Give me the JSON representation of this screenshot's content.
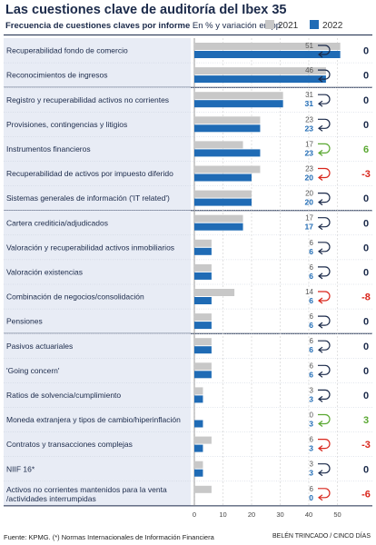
{
  "title": "Las cuestiones clave de auditoría del Ibex 35",
  "subtitle_bold": "Frecuencia de cuestiones claves por informe",
  "subtitle_rest": "En % y variación en pp",
  "footer": "Fuente: KPMG. (*) Normas Internacionales de Información Financiera",
  "credit": "BELÉN TRINCADO / CINCO DÍAS",
  "colors": {
    "y2021": "#c8c8c8",
    "y2022": "#1f6bb5",
    "positive": "#5aa832",
    "negative": "#d9261c",
    "neutral": "#1b2a4a",
    "band": "#e8ecf5"
  },
  "chart_data": {
    "type": "bar",
    "orientation": "horizontal",
    "x_ticks": [
      0,
      10,
      20,
      30,
      40,
      50
    ],
    "xlim": [
      0,
      54
    ],
    "series_labels": [
      "2021",
      "2022"
    ],
    "categories": [
      "Recuperabilidad fondo de comercio",
      "Reconocimientos de ingresos",
      "Registro y recuperabilidad activos no corrientes",
      "Provisiones, contingencias y litigios",
      "Instrumentos financieros",
      "Recuperabilidad de activos por impuesto diferido",
      "Sistemas generales de información ('IT related')",
      "Cartera crediticia/adjudicados",
      "Valoración y recuperabilidad activos inmobiliarios",
      "Valoración existencias",
      "Combinación de negocios/consolidación",
      "Pensiones",
      "Pasivos actuariales",
      "'Going concern'",
      "Ratios de solvencia/cumplimiento",
      "Moneda extranjera y tipos de cambio/hiperinflación",
      "Contratos y transacciones complejas",
      "NIIF 16*",
      "Activos no corrientes mantenidos para la venta /actividades interrumpidas"
    ],
    "v2021": [
      51,
      46,
      31,
      23,
      17,
      23,
      20,
      17,
      6,
      6,
      14,
      6,
      6,
      6,
      3,
      0,
      6,
      3,
      6
    ],
    "v2022": [
      51,
      46,
      31,
      23,
      23,
      20,
      20,
      17,
      6,
      6,
      6,
      6,
      6,
      6,
      3,
      3,
      3,
      3,
      0
    ],
    "change": [
      "0",
      "0",
      "0",
      "0",
      "6",
      "-3",
      "0",
      "0",
      "0",
      "0",
      "-8",
      "0",
      "0",
      "0",
      "0",
      "3",
      "-3",
      "0",
      "-6"
    ]
  }
}
